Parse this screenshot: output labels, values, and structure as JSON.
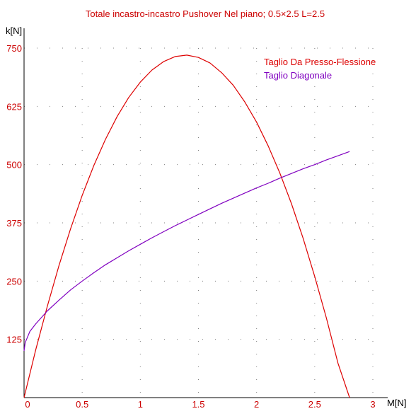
{
  "chart_data": {
    "type": "line",
    "title": "Totale incastro-incastro Pushover Nel piano; 0.5×2.5 L=2.5",
    "xlabel": "M[N]",
    "ylabel": "k[N]",
    "xlim": [
      0,
      3
    ],
    "ylim": [
      0,
      750
    ],
    "x_ticks": [
      "0",
      "0.5",
      "1",
      "1.5",
      "2",
      "2.5",
      "3"
    ],
    "y_ticks": [
      "125",
      "250",
      "375",
      "500",
      "625",
      "750"
    ],
    "grid": true,
    "legend_position": "top-right",
    "colors": {
      "text": "#cc0000",
      "axis": "#000000",
      "grid": "#808080"
    },
    "series": [
      {
        "name": "Taglio Da Presso-Flessione",
        "color": "#dd0000",
        "x": [
          0,
          0.1,
          0.2,
          0.3,
          0.4,
          0.5,
          0.6,
          0.7,
          0.8,
          0.9,
          1.0,
          1.1,
          1.2,
          1.3,
          1.4,
          1.5,
          1.6,
          1.7,
          1.8,
          1.9,
          2.0,
          2.1,
          2.2,
          2.3,
          2.4,
          2.5,
          2.6,
          2.7,
          2.8
        ],
        "y": [
          0,
          102,
          196,
          283,
          362,
          434,
          498,
          554,
          603,
          644,
          677,
          703,
          721,
          732,
          735,
          730,
          718,
          697,
          670,
          634,
          591,
          540,
          482,
          416,
          342,
          260,
          171,
          74,
          0
        ]
      },
      {
        "name": "Taglio Diagonale",
        "color": "#8000c0",
        "x": [
          0,
          0.01,
          0.05,
          0.1,
          0.2,
          0.3,
          0.4,
          0.5,
          0.6,
          0.7,
          0.8,
          0.9,
          1.0,
          1.1,
          1.2,
          1.3,
          1.4,
          1.5,
          1.6,
          1.7,
          1.8,
          1.9,
          2.0,
          2.1,
          2.2,
          2.3,
          2.4,
          2.5,
          2.6,
          2.7,
          2.8
        ],
        "y": [
          100,
          118,
          142,
          158,
          186,
          209,
          231,
          250,
          268,
          285,
          300,
          315,
          329,
          343,
          356,
          369,
          381,
          393,
          405,
          417,
          428,
          439,
          450,
          460,
          471,
          481,
          491,
          500,
          510,
          519,
          528
        ]
      }
    ]
  }
}
